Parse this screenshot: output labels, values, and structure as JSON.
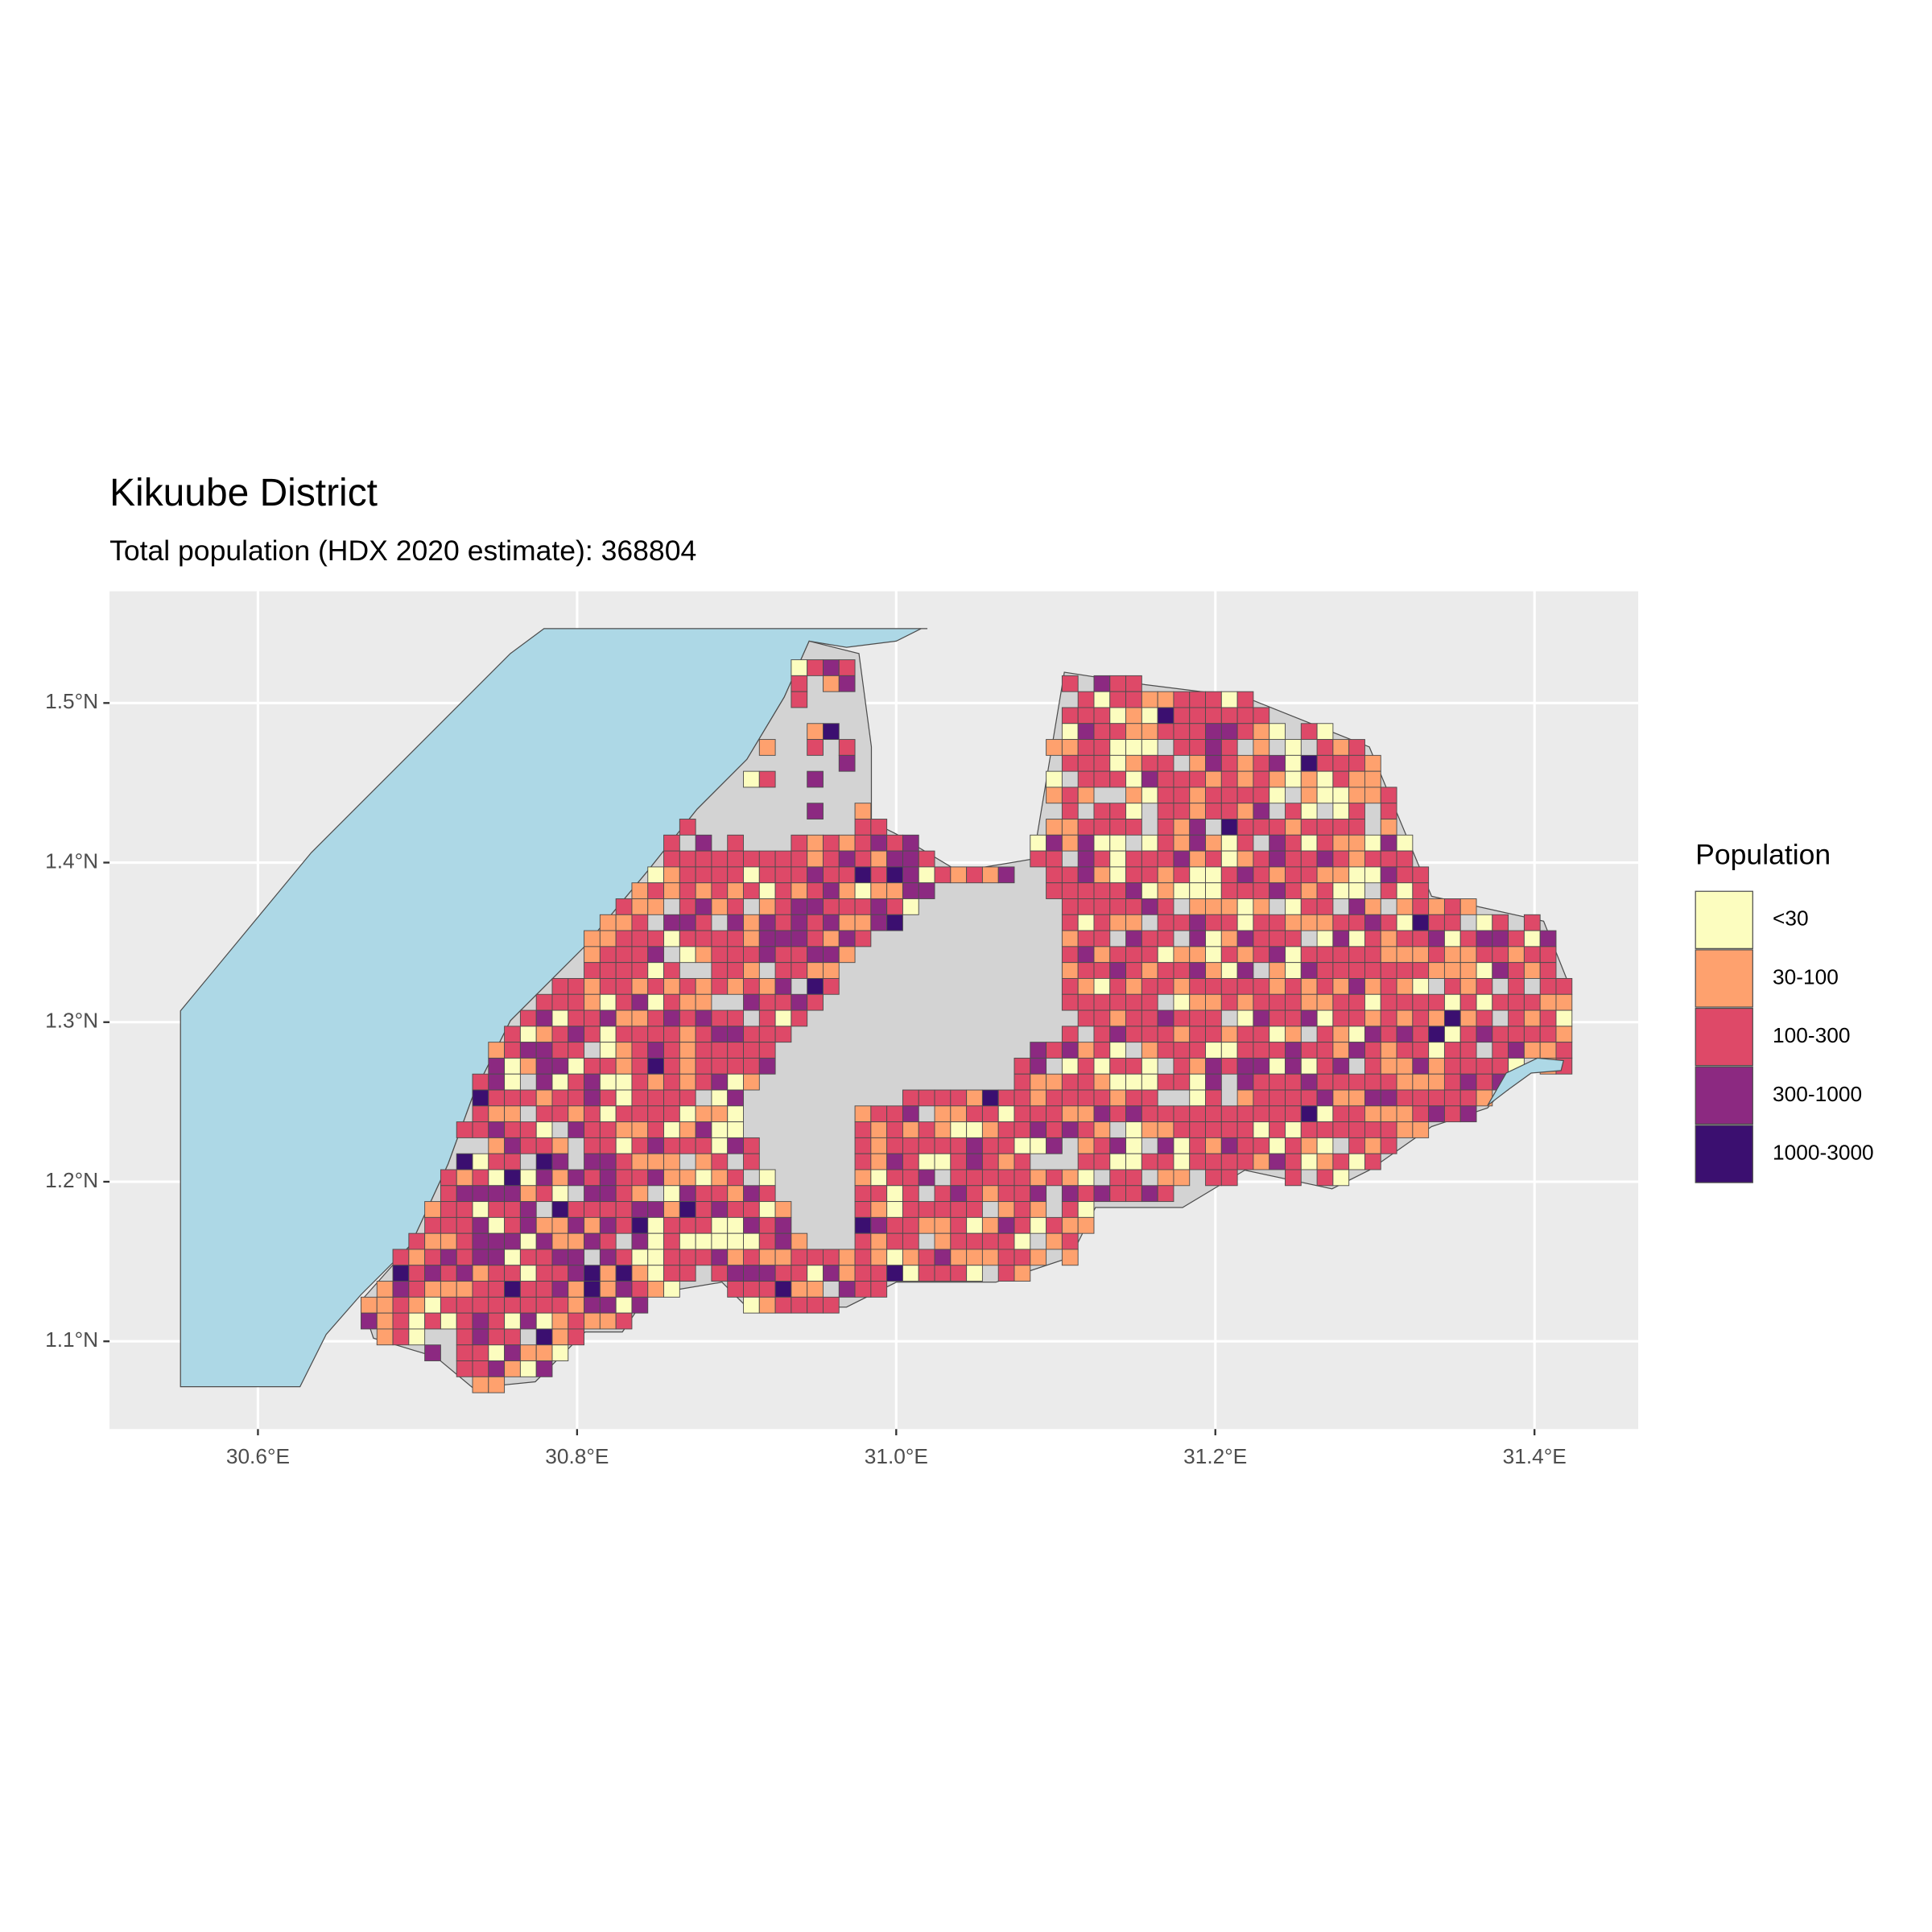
{
  "chart_data": {
    "type": "map",
    "title": "Kikuube District",
    "subtitle": "Total population (HDX 2020 estimate): 368804",
    "xlim": [
      30.507,
      31.465
    ],
    "ylim": [
      1.045,
      1.57
    ],
    "xticks": [
      {
        "value": 30.6,
        "label": "30.6°E"
      },
      {
        "value": 30.8,
        "label": "30.8°E"
      },
      {
        "value": 31.0,
        "label": "31.0°E"
      },
      {
        "value": 31.2,
        "label": "31.2°E"
      },
      {
        "value": 31.4,
        "label": "31.4°E"
      }
    ],
    "yticks": [
      {
        "value": 1.1,
        "label": "1.1°N"
      },
      {
        "value": 1.2,
        "label": "1.2°N"
      },
      {
        "value": 1.3,
        "label": "1.3°N"
      },
      {
        "value": 1.4,
        "label": "1.4°N"
      },
      {
        "value": 1.5,
        "label": "1.5°N"
      }
    ],
    "grid": true,
    "legend": {
      "title": "Population",
      "position": "right",
      "items": [
        {
          "label": "<30",
          "color": "#fcfdbf"
        },
        {
          "label": "30-100",
          "color": "#fea16e"
        },
        {
          "label": "100-300",
          "color": "#de4968"
        },
        {
          "label": "300-1000",
          "color": "#8c2981"
        },
        {
          "label": "1000-3000",
          "color": "#3b0f70"
        }
      ]
    }
  }
}
